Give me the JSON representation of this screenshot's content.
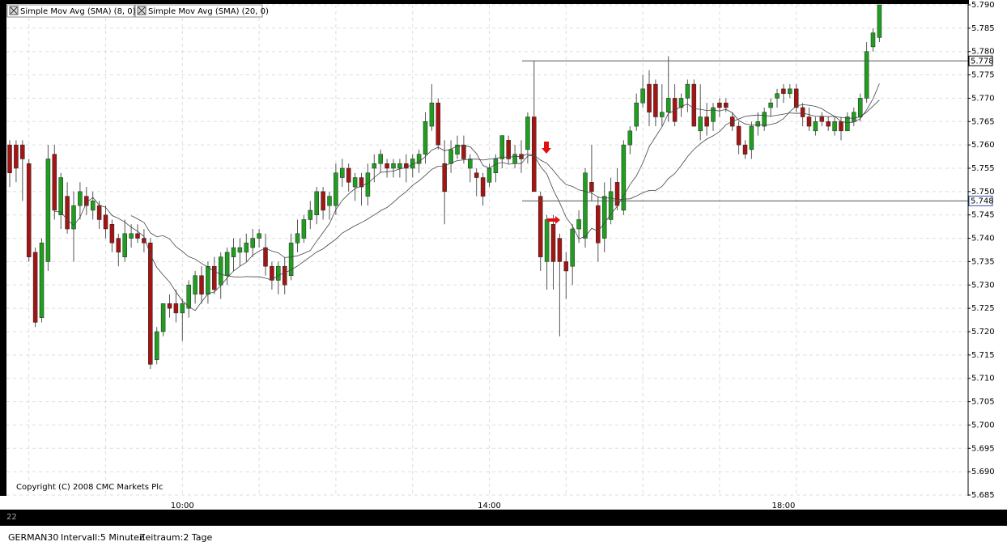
{
  "chart_data": {
    "type": "candlestick",
    "legend": [
      "Simple Mov Avg (SMA) (8, 0)",
      "Simple Mov Avg (SMA) (20, 0)"
    ],
    "categories": [
      null,
      null,
      null,
      null,
      null,
      null,
      null,
      null,
      null,
      null,
      null,
      null,
      null,
      null,
      null,
      null,
      null,
      null,
      null,
      null,
      null,
      null,
      null,
      null,
      null,
      null,
      null,
      "10:00",
      null,
      null,
      null,
      null,
      null,
      null,
      null,
      null,
      null,
      null,
      null,
      null,
      null,
      null,
      null,
      null,
      null,
      null,
      null,
      null,
      null,
      null,
      null,
      null,
      null,
      null,
      null,
      null,
      null,
      null,
      null,
      null,
      null,
      null,
      null,
      null,
      null,
      null,
      null,
      null,
      null,
      null,
      null,
      null,
      null,
      null,
      null,
      "14:00",
      null,
      null,
      null,
      null,
      null,
      null,
      null,
      null,
      null,
      null,
      null,
      null,
      null,
      null,
      null,
      null,
      null,
      null,
      null,
      null,
      null,
      null,
      null,
      null,
      null,
      null,
      null,
      null,
      null,
      null,
      null,
      null,
      null,
      null,
      null,
      null,
      null,
      null,
      null,
      null,
      null,
      null,
      null,
      null,
      null,
      "18:00",
      null,
      null,
      null,
      null,
      null,
      null,
      null,
      null,
      null,
      null,
      null,
      null,
      null
    ],
    "candles": [
      [
        5.76,
        5.761,
        5.751,
        5.754
      ],
      [
        5.76,
        5.761,
        5.752,
        5.755
      ],
      [
        5.76,
        5.761,
        5.748,
        5.757
      ],
      [
        5.756,
        5.757,
        5.735,
        5.736
      ],
      [
        5.737,
        5.738,
        5.721,
        5.722
      ],
      [
        5.723,
        5.74,
        5.722,
        5.739
      ],
      [
        5.735,
        5.76,
        5.733,
        5.757
      ],
      [
        5.758,
        5.76,
        5.744,
        5.746
      ],
      [
        5.745,
        5.754,
        5.742,
        5.753
      ],
      [
        5.749,
        5.752,
        5.741,
        5.742
      ],
      [
        5.742,
        5.75,
        5.735,
        5.747
      ],
      [
        5.747,
        5.752,
        5.744,
        5.75
      ],
      [
        5.749,
        5.751,
        5.745,
        5.747
      ],
      [
        5.746,
        5.75,
        5.744,
        5.748
      ],
      [
        5.747,
        5.748,
        5.742,
        5.744
      ],
      [
        5.745,
        5.747,
        5.74,
        5.742
      ],
      [
        5.743,
        5.744,
        5.737,
        5.739
      ],
      [
        5.74,
        5.741,
        5.734,
        5.737
      ],
      [
        5.736,
        5.744,
        5.735,
        5.741
      ],
      [
        5.74,
        5.743,
        5.738,
        5.741
      ],
      [
        5.741,
        5.743,
        5.739,
        5.74
      ],
      [
        5.74,
        5.742,
        5.737,
        5.739
      ],
      [
        5.739,
        5.74,
        5.712,
        5.713
      ],
      [
        5.714,
        5.721,
        5.713,
        5.72
      ],
      [
        5.72,
        5.726,
        5.719,
        5.726
      ],
      [
        5.726,
        5.728,
        5.723,
        5.725
      ],
      [
        5.726,
        5.729,
        5.722,
        5.724
      ],
      [
        5.724,
        5.727,
        5.718,
        5.726
      ],
      [
        5.725,
        5.731,
        5.723,
        5.73
      ],
      [
        5.728,
        5.733,
        5.726,
        5.732
      ],
      [
        5.732,
        5.734,
        5.726,
        5.728
      ],
      [
        5.728,
        5.735,
        5.726,
        5.734
      ],
      [
        5.734,
        5.736,
        5.728,
        5.729
      ],
      [
        5.73,
        5.737,
        5.727,
        5.736
      ],
      [
        5.732,
        5.738,
        5.73,
        5.737
      ],
      [
        5.736,
        5.74,
        5.733,
        5.738
      ],
      [
        5.737,
        5.74,
        5.734,
        5.738
      ],
      [
        5.737,
        5.741,
        5.735,
        5.739
      ],
      [
        5.738,
        5.742,
        5.736,
        5.74
      ],
      [
        5.74,
        5.742,
        5.738,
        5.741
      ],
      [
        5.738,
        5.741,
        5.732,
        5.734
      ],
      [
        5.734,
        5.735,
        5.729,
        5.731
      ],
      [
        5.731,
        5.735,
        5.728,
        5.734
      ],
      [
        5.734,
        5.736,
        5.728,
        5.73
      ],
      [
        5.732,
        5.741,
        5.731,
        5.739
      ],
      [
        5.739,
        5.744,
        5.737,
        5.741
      ],
      [
        5.74,
        5.745,
        5.739,
        5.744
      ],
      [
        5.744,
        5.748,
        5.742,
        5.746
      ],
      [
        5.745,
        5.751,
        5.743,
        5.75
      ],
      [
        5.75,
        5.751,
        5.744,
        5.746
      ],
      [
        5.747,
        5.75,
        5.744,
        5.749
      ],
      [
        5.747,
        5.756,
        5.745,
        5.754
      ],
      [
        5.753,
        5.757,
        5.751,
        5.755
      ],
      [
        5.755,
        5.756,
        5.75,
        5.752
      ],
      [
        5.751,
        5.754,
        5.748,
        5.753
      ],
      [
        5.753,
        5.754,
        5.747,
        5.751
      ],
      [
        5.749,
        5.756,
        5.747,
        5.754
      ],
      [
        5.755,
        5.758,
        5.752,
        5.756
      ],
      [
        5.756,
        5.759,
        5.754,
        5.758
      ],
      [
        5.756,
        5.757,
        5.753,
        5.755
      ],
      [
        5.755,
        5.757,
        5.753,
        5.756
      ],
      [
        5.755,
        5.757,
        5.753,
        5.756
      ],
      [
        5.756,
        5.758,
        5.752,
        5.755
      ],
      [
        5.755,
        5.758,
        5.753,
        5.757
      ],
      [
        5.756,
        5.759,
        5.754,
        5.758
      ],
      [
        5.758,
        5.767,
        5.756,
        5.765
      ],
      [
        5.764,
        5.773,
        5.763,
        5.769
      ],
      [
        5.769,
        5.77,
        5.759,
        5.76
      ],
      [
        5.756,
        5.761,
        5.743,
        5.75
      ],
      [
        5.756,
        5.761,
        5.754,
        5.759
      ],
      [
        5.758,
        5.762,
        5.757,
        5.76
      ],
      [
        5.76,
        5.762,
        5.756,
        5.757
      ],
      [
        5.755,
        5.758,
        5.752,
        5.757
      ],
      [
        5.754,
        5.755,
        5.749,
        5.753
      ],
      [
        5.753,
        5.754,
        5.747,
        5.749
      ],
      [
        5.752,
        5.756,
        5.751,
        5.755
      ],
      [
        5.754,
        5.758,
        5.752,
        5.757
      ],
      [
        5.757,
        5.762,
        5.755,
        5.762
      ],
      [
        5.761,
        5.762,
        5.756,
        5.757
      ],
      [
        5.756,
        5.76,
        5.755,
        5.758
      ],
      [
        5.758,
        5.761,
        5.754,
        5.757
      ],
      [
        5.759,
        5.767,
        5.756,
        5.766
      ],
      [
        5.766,
        5.778,
        5.75,
        5.75
      ],
      [
        5.749,
        5.75,
        5.733,
        5.736
      ],
      [
        5.735,
        5.745,
        5.729,
        5.744
      ],
      [
        5.743,
        5.745,
        5.729,
        5.735
      ],
      [
        5.74,
        5.741,
        5.719,
        5.735
      ],
      [
        5.735,
        5.737,
        5.727,
        5.733
      ],
      [
        5.734,
        5.743,
        5.73,
        5.742
      ],
      [
        5.742,
        5.746,
        5.739,
        5.744
      ],
      [
        5.74,
        5.755,
        5.738,
        5.754
      ],
      [
        5.752,
        5.76,
        5.748,
        5.75
      ],
      [
        5.747,
        5.749,
        5.735,
        5.739
      ],
      [
        5.74,
        5.752,
        5.737,
        5.749
      ],
      [
        5.744,
        5.753,
        5.743,
        5.75
      ],
      [
        5.752,
        5.755,
        5.746,
        5.747
      ],
      [
        5.746,
        5.761,
        5.745,
        5.76
      ],
      [
        5.76,
        5.764,
        5.758,
        5.763
      ],
      [
        5.764,
        5.771,
        5.763,
        5.769
      ],
      [
        5.769,
        5.775,
        5.768,
        5.772
      ],
      [
        5.773,
        5.776,
        5.764,
        5.767
      ],
      [
        5.773,
        5.774,
        5.764,
        5.766
      ],
      [
        5.766,
        5.773,
        5.764,
        5.767
      ],
      [
        5.767,
        5.779,
        5.765,
        5.77
      ],
      [
        5.77,
        5.773,
        5.764,
        5.765
      ],
      [
        5.768,
        5.771,
        5.766,
        5.77
      ],
      [
        5.77,
        5.774,
        5.767,
        5.773
      ],
      [
        5.773,
        5.774,
        5.764,
        5.764
      ],
      [
        5.763,
        5.773,
        5.761,
        5.766
      ],
      [
        5.766,
        5.769,
        5.762,
        5.764
      ],
      [
        5.765,
        5.769,
        5.763,
        5.768
      ],
      [
        5.769,
        5.77,
        5.766,
        5.768
      ],
      [
        5.769,
        5.77,
        5.767,
        5.768
      ],
      [
        5.766,
        5.767,
        5.763,
        5.764
      ],
      [
        5.764,
        5.765,
        5.758,
        5.76
      ],
      [
        5.76,
        5.761,
        5.757,
        5.758
      ],
      [
        5.759,
        5.765,
        5.757,
        5.764
      ],
      [
        5.764,
        5.767,
        5.762,
        5.765
      ],
      [
        5.764,
        5.768,
        5.763,
        5.767
      ],
      [
        5.768,
        5.77,
        5.766,
        5.769
      ],
      [
        5.77,
        5.772,
        5.768,
        5.771
      ],
      [
        5.772,
        5.773,
        5.769,
        5.771
      ],
      [
        5.771,
        5.773,
        5.77,
        5.772
      ],
      [
        5.772,
        5.773,
        5.767,
        5.768
      ],
      [
        5.768,
        5.769,
        5.764,
        5.766
      ],
      [
        5.766,
        5.768,
        5.763,
        5.764
      ],
      [
        5.763,
        5.766,
        5.762,
        5.765
      ],
      [
        5.766,
        5.767,
        5.764,
        5.765
      ],
      [
        5.765,
        5.766,
        5.763,
        5.764
      ],
      [
        5.763,
        5.766,
        5.762,
        5.765
      ],
      [
        5.765,
        5.766,
        5.761,
        5.763
      ],
      [
        5.763,
        5.767,
        5.763,
        5.766
      ],
      [
        5.765,
        5.768,
        5.764,
        5.767
      ],
      [
        5.766,
        5.771,
        5.765,
        5.77
      ],
      [
        5.77,
        5.782,
        5.769,
        5.78
      ],
      [
        5.781,
        5.785,
        5.78,
        5.784
      ],
      [
        5.783,
        5.79,
        5.782,
        5.79
      ]
    ],
    "ylim": [
      5.685,
      5.79
    ],
    "yticks": [
      {
        "value": 5.79,
        "label": "5.790"
      },
      {
        "value": 5.785,
        "label": "5.785"
      },
      {
        "value": 5.78,
        "label": "5.780"
      },
      {
        "value": 5.775,
        "label": "5.775"
      },
      {
        "value": 5.77,
        "label": "5.770"
      },
      {
        "value": 5.765,
        "label": "5.765"
      },
      {
        "value": 5.76,
        "label": "5.760"
      },
      {
        "value": 5.755,
        "label": "5.755"
      },
      {
        "value": 5.75,
        "label": "5.750"
      },
      {
        "value": 5.745,
        "label": "5.745"
      },
      {
        "value": 5.74,
        "label": "5.740"
      },
      {
        "value": 5.735,
        "label": "5.735"
      },
      {
        "value": 5.73,
        "label": "5.730"
      },
      {
        "value": 5.725,
        "label": "5.725"
      },
      {
        "value": 5.72,
        "label": "5.720"
      },
      {
        "value": 5.715,
        "label": "5.715"
      },
      {
        "value": 5.71,
        "label": "5.710"
      },
      {
        "value": 5.705,
        "label": "5.705"
      },
      {
        "value": 5.7,
        "label": "5.700"
      },
      {
        "value": 5.695,
        "label": "5.695"
      },
      {
        "value": 5.69,
        "label": "5.690"
      },
      {
        "value": 5.685,
        "label": "5.685"
      }
    ],
    "levels": [
      {
        "value": 5.778,
        "label": "5.778"
      },
      {
        "value": 5.748,
        "label": "5.748"
      }
    ],
    "grid": true,
    "up_color": "#1f9e1f",
    "down_color": "#a31515"
  },
  "copyright": "Copyright (C) 2008 CMC Markets Plc",
  "date_label": "22",
  "status": [
    "GERMAN30",
    "Intervall:5 Minuten",
    "Zeitraum:2 Tage"
  ]
}
